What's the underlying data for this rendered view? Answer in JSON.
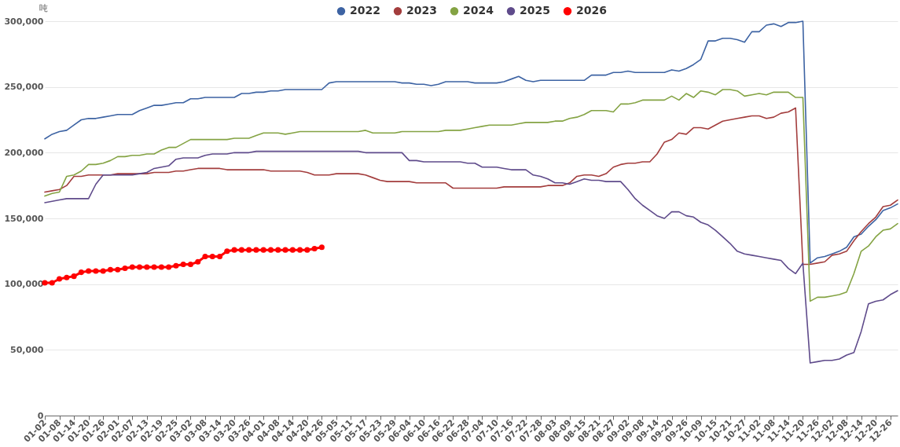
{
  "chart_data": {
    "type": "line",
    "ylabel": "吨",
    "legend": "top",
    "grid": "y",
    "marker": "none",
    "line_style": "solid",
    "ylim": [
      0,
      300000
    ],
    "yticks": [
      0,
      {
        "value": 50000,
        "label": "50,000"
      },
      {
        "value": 100000,
        "label": "100,000"
      },
      {
        "value": 150000,
        "label": "150,000"
      },
      {
        "value": 200000,
        "label": "200,000"
      },
      {
        "value": 250000,
        "label": "250,000"
      },
      {
        "value": 300000,
        "label": "300,000"
      }
    ],
    "categories": [
      "01-02",
      null,
      "01-08",
      null,
      "01-14",
      null,
      "01-20",
      null,
      "01-26",
      null,
      "02-01",
      null,
      "02-07",
      null,
      "02-13",
      null,
      "02-19",
      null,
      "02-25",
      null,
      "03-02",
      null,
      "03-08",
      null,
      "03-14",
      null,
      "03-20",
      null,
      "03-26",
      null,
      "04-01",
      null,
      "04-08",
      null,
      "04-14",
      null,
      "04-20",
      null,
      "04-26",
      null,
      "05-05",
      null,
      "05-11",
      null,
      "05-17",
      null,
      "05-23",
      null,
      "05-29",
      null,
      "06-04",
      null,
      "06-10",
      null,
      "06-16",
      null,
      "06-22",
      null,
      "06-28",
      null,
      "07-04",
      null,
      "07-10",
      null,
      "07-16",
      null,
      "07-22",
      null,
      "07-28",
      null,
      "08-03",
      null,
      "08-09",
      null,
      "08-15",
      null,
      "08-21",
      null,
      "08-27",
      null,
      "09-02",
      null,
      "09-08",
      null,
      "09-14",
      null,
      "09-20",
      null,
      "09-26",
      null,
      "10-09",
      null,
      "10-15",
      null,
      "10-21",
      null,
      "10-27",
      null,
      "11-02",
      null,
      "11-08",
      null,
      "11-14",
      null,
      "11-20",
      null,
      "11-26",
      null,
      "12-02",
      null,
      "12-08",
      null,
      "12-14",
      null,
      "12-20",
      null,
      "12-26",
      null
    ],
    "series": [
      {
        "name": "2022",
        "color": "#3d63a3",
        "values": [
          210500,
          214000,
          216000,
          217000,
          221000,
          225000,
          226000,
          226000,
          227000,
          228000,
          229000,
          229000,
          229000,
          232000,
          234000,
          236000,
          236000,
          237000,
          238000,
          238000,
          241000,
          241000,
          242000,
          242000,
          242000,
          242000,
          242000,
          245000,
          245000,
          246000,
          246000,
          247000,
          247000,
          248000,
          248000,
          248000,
          248000,
          248000,
          248000,
          253000,
          254000,
          254000,
          254000,
          254000,
          254000,
          254000,
          254000,
          254000,
          254000,
          253000,
          253000,
          252000,
          252000,
          251000,
          252000,
          254000,
          254000,
          254000,
          254000,
          253000,
          253000,
          253000,
          253000,
          254000,
          256000,
          258000,
          255000,
          254000,
          255000,
          255000,
          255000,
          255000,
          255000,
          255000,
          255000,
          259000,
          259000,
          259000,
          261000,
          261000,
          262000,
          261000,
          261000,
          261000,
          261000,
          261000,
          263000,
          262000,
          264000,
          267000,
          271000,
          285000,
          285000,
          287000,
          287000,
          286000,
          284000,
          292000,
          292000,
          297000,
          298000,
          296000,
          299000,
          299000,
          300000,
          116000,
          120000,
          121000,
          123000,
          125000,
          128000,
          136000,
          138000,
          144000,
          149000,
          156000,
          158000,
          161000
        ]
      },
      {
        "name": "2023",
        "color": "#a33d3d",
        "values": [
          170000,
          171000,
          172000,
          175000,
          182000,
          182000,
          183000,
          183000,
          183000,
          183000,
          184000,
          184000,
          184000,
          184000,
          184000,
          185000,
          185000,
          185000,
          186000,
          186000,
          187000,
          188000,
          188000,
          188000,
          188000,
          187000,
          187000,
          187000,
          187000,
          187000,
          187000,
          186000,
          186000,
          186000,
          186000,
          186000,
          185000,
          183000,
          183000,
          183000,
          184000,
          184000,
          184000,
          184000,
          183000,
          181000,
          179000,
          178000,
          178000,
          178000,
          178000,
          177000,
          177000,
          177000,
          177000,
          177000,
          173000,
          173000,
          173000,
          173000,
          173000,
          173000,
          173000,
          174000,
          174000,
          174000,
          174000,
          174000,
          174000,
          175000,
          175000,
          175000,
          177000,
          182000,
          183000,
          183000,
          182000,
          184000,
          189000,
          191000,
          192000,
          192000,
          193000,
          193000,
          199000,
          208000,
          210000,
          215000,
          214000,
          219000,
          219000,
          218000,
          221000,
          224000,
          225000,
          226000,
          227000,
          228000,
          228000,
          226000,
          227000,
          230000,
          231000,
          234000,
          115000,
          115000,
          116000,
          117000,
          122000,
          123000,
          125000,
          133000,
          140000,
          146000,
          151000,
          159000,
          160000,
          164000
        ]
      },
      {
        "name": "2024",
        "color": "#84a343",
        "values": [
          167000,
          169000,
          170000,
          182000,
          183000,
          186000,
          191000,
          191000,
          192000,
          194000,
          197000,
          197000,
          198000,
          198000,
          199000,
          199000,
          202000,
          204000,
          204000,
          207000,
          210000,
          210000,
          210000,
          210000,
          210000,
          210000,
          211000,
          211000,
          211000,
          213000,
          215000,
          215000,
          215000,
          214000,
          215000,
          216000,
          216000,
          216000,
          216000,
          216000,
          216000,
          216000,
          216000,
          216000,
          217000,
          215000,
          215000,
          215000,
          215000,
          216000,
          216000,
          216000,
          216000,
          216000,
          216000,
          217000,
          217000,
          217000,
          218000,
          219000,
          220000,
          221000,
          221000,
          221000,
          221000,
          222000,
          223000,
          223000,
          223000,
          223000,
          224000,
          224000,
          226000,
          227000,
          229000,
          232000,
          232000,
          232000,
          231000,
          237000,
          237000,
          238000,
          240000,
          240000,
          240000,
          240000,
          243000,
          240000,
          245000,
          242000,
          247000,
          246000,
          244000,
          248000,
          248000,
          247000,
          243000,
          244000,
          245000,
          244000,
          246000,
          246000,
          246000,
          242000,
          242000,
          87000,
          90000,
          90000,
          91000,
          92000,
          94000,
          108000,
          125000,
          129000,
          136000,
          141000,
          142000,
          146000
        ]
      },
      {
        "name": "2025",
        "color": "#5f4b8b",
        "values": [
          162000,
          163000,
          164000,
          165000,
          165000,
          165000,
          165000,
          176000,
          183000,
          183000,
          183000,
          183000,
          183000,
          184000,
          185000,
          188000,
          189000,
          190000,
          195000,
          196000,
          196000,
          196000,
          198000,
          199000,
          199000,
          199000,
          200000,
          200000,
          200000,
          201000,
          201000,
          201000,
          201000,
          201000,
          201000,
          201000,
          201000,
          201000,
          201000,
          201000,
          201000,
          201000,
          201000,
          201000,
          200000,
          200000,
          200000,
          200000,
          200000,
          200000,
          194000,
          194000,
          193000,
          193000,
          193000,
          193000,
          193000,
          193000,
          192000,
          192000,
          189000,
          189000,
          189000,
          188000,
          187000,
          187000,
          187000,
          183000,
          182000,
          180000,
          177000,
          177000,
          176000,
          178000,
          180000,
          179000,
          179000,
          178000,
          178000,
          178000,
          172000,
          165000,
          160000,
          156000,
          152000,
          150000,
          155000,
          155000,
          152000,
          151000,
          147000,
          145000,
          141000,
          136000,
          131000,
          125000,
          123000,
          122000,
          121000,
          120000,
          119000,
          118000,
          112000,
          108000,
          116000,
          40000,
          41000,
          42000,
          42000,
          43000,
          46000,
          48000,
          64000,
          85000,
          87000,
          88000,
          92000,
          95000
        ]
      },
      {
        "name": "2026",
        "color": "#ff0000",
        "marker": "circle",
        "values": [
          101000,
          101000,
          104000,
          105000,
          106000,
          109000,
          110000,
          110000,
          110000,
          111000,
          111000,
          112000,
          113000,
          113000,
          113000,
          113000,
          113000,
          113000,
          114000,
          115000,
          115000,
          117000,
          121000,
          121000,
          121000,
          125000,
          126000,
          126000,
          126000,
          126000,
          126000,
          126000,
          126000,
          126000,
          126000,
          126000,
          126000,
          127000,
          128000,
          null,
          null,
          null,
          null,
          null,
          null,
          null,
          null,
          null,
          null,
          null,
          null,
          null,
          null,
          null,
          null,
          null,
          null,
          null,
          null,
          null,
          null,
          null,
          null,
          null,
          null,
          null,
          null,
          null,
          null,
          null,
          null,
          null,
          null,
          null,
          null,
          null,
          null,
          null,
          null,
          null,
          null,
          null,
          null,
          null,
          null,
          null,
          null,
          null,
          null,
          null,
          null,
          null,
          null,
          null,
          null,
          null,
          null,
          null,
          null,
          null,
          null,
          null,
          null,
          null,
          null,
          null,
          null,
          null,
          null,
          null,
          null,
          null,
          null,
          null,
          null,
          null,
          null,
          null
        ]
      }
    ]
  }
}
